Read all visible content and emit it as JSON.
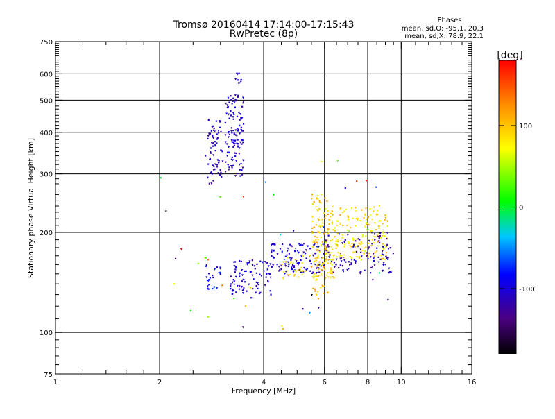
{
  "header": {
    "title_line1": "Tromsø 20160414 17:14:00-17:15:43",
    "title_line2": "RwPretec (8p)"
  },
  "phase_info": {
    "heading": "Phases",
    "line_o": "mean, sd,O: -95.1, 20.3",
    "line_x": "mean, sd,X:  78.9, 22.1"
  },
  "colorbar": {
    "unit_label": "[deg]",
    "range": [
      -180,
      180
    ],
    "tick_labels": [
      "100",
      "0",
      "-100"
    ],
    "tick_values": [
      100,
      0,
      -100
    ]
  },
  "chart_data": {
    "type": "scatter",
    "title": "Tromsø 20160414 17:14:00-17:15:43",
    "subtitle": "RwPretec (8p)",
    "xlabel": "Frequency [MHz]",
    "ylabel": "Stationary phase Virtual Height [km]",
    "xscale": "log",
    "yscale": "log",
    "xlim": [
      1,
      16
    ],
    "ylim": [
      75,
      750
    ],
    "x_major_ticks": [
      1,
      2,
      4,
      6,
      8,
      10,
      16
    ],
    "x_tick_labels": [
      "1",
      "2",
      "4",
      "6",
      "8",
      "10",
      "16"
    ],
    "x_minor_ticks": [
      1.2,
      1.4,
      1.6,
      1.8,
      2.5,
      3,
      3.5,
      4.5,
      5,
      5.5,
      6.5,
      7,
      7.5,
      8.5,
      9,
      9.5,
      11,
      12,
      13,
      14,
      15
    ],
    "y_major_ticks": [
      75,
      100,
      200,
      300,
      400,
      500,
      600,
      750
    ],
    "y_tick_labels": [
      "75",
      "100",
      "200",
      "300",
      "400",
      "500",
      "600",
      "750"
    ],
    "y_minor_ticks": [
      80,
      85,
      90,
      95,
      110,
      120,
      130,
      140,
      150,
      160,
      170,
      180,
      190,
      210,
      220,
      230,
      240,
      250,
      260,
      270,
      280,
      290,
      310,
      320,
      330,
      340,
      350,
      360,
      370,
      380,
      390,
      410,
      420,
      430,
      440,
      450,
      460,
      470,
      480,
      490,
      510,
      520,
      530,
      540,
      550,
      560,
      570,
      580,
      590,
      610,
      620,
      630,
      640,
      650,
      660,
      670,
      680,
      690,
      700,
      710,
      720,
      730,
      740
    ],
    "grid_x": [
      2,
      4,
      6,
      8,
      10
    ],
    "grid_y": [
      100,
      200,
      300,
      400,
      500,
      600
    ],
    "color_variable": "phase [deg]",
    "clusters": [
      {
        "name": "",
        "f_range": [
          2.75,
          3.05
        ],
        "h_range": [
          280,
          440
        ],
        "phase_range": [
          -130,
          -90
        ],
        "count": 70
      },
      {
        "name": "",
        "f_range": [
          3.1,
          3.5
        ],
        "h_range": [
          295,
          520
        ],
        "phase_range": [
          -130,
          -85
        ],
        "count": 120
      },
      {
        "name": "",
        "f_range": [
          3.3,
          3.45
        ],
        "h_range": [
          550,
          630
        ],
        "phase_range": [
          -120,
          -90
        ],
        "count": 10
      },
      {
        "name": "",
        "f_range": [
          2.7,
          3.0
        ],
        "h_range": [
          135,
          160
        ],
        "phase_range": [
          -110,
          -70
        ],
        "count": 25
      },
      {
        "name": "",
        "f_range": [
          3.2,
          4.2
        ],
        "h_range": [
          130,
          165
        ],
        "phase_range": [
          -125,
          -80
        ],
        "count": 90
      },
      {
        "name": "",
        "f_range": [
          4.2,
          6.0
        ],
        "h_range": [
          150,
          185
        ],
        "phase_range": [
          -130,
          -80
        ],
        "count": 110
      },
      {
        "name": "",
        "f_range": [
          4.5,
          6.4
        ],
        "h_range": [
          145,
          170
        ],
        "phase_range": [
          60,
          110
        ],
        "count": 60
      },
      {
        "name": "",
        "f_range": [
          5.5,
          6.2
        ],
        "h_range": [
          125,
          260
        ],
        "phase_range": [
          70,
          125
        ],
        "count": 110
      },
      {
        "name": "",
        "f_range": [
          6.0,
          9.2
        ],
        "h_range": [
          165,
          240
        ],
        "phase_range": [
          60,
          115
        ],
        "count": 190
      },
      {
        "name": "",
        "f_range": [
          6.0,
          9.5
        ],
        "h_range": [
          150,
          200
        ],
        "phase_range": [
          -140,
          -95
        ],
        "count": 110
      },
      {
        "name": "",
        "f_range": [
          2.0,
          9.5
        ],
        "h_range": [
          95,
          350
        ],
        "phase_range": [
          -180,
          180
        ],
        "count": 45
      }
    ]
  }
}
